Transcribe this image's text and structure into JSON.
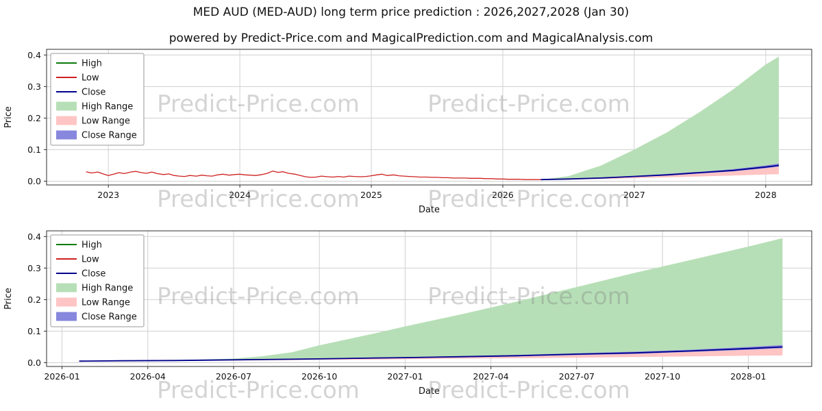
{
  "title": "MED AUD (MED-AUD) long term price prediction : 2026,2027,2028 (Jan 30)",
  "subtitle": "powered by Predict-Price.com and MagicalPrediction.com and MagicalAnalysis.com",
  "watermark": "Predict-Price.com",
  "colors": {
    "high_line": "#0a7a0a",
    "low_line": "#cf1f1f",
    "close_line": "#00008b",
    "high_range": "#b7dfb7",
    "low_range": "#ffc4c4",
    "close_range": "#8787dd",
    "grid": "#d0d0d0"
  },
  "chart_data": [
    {
      "type": "line",
      "title": "",
      "xlabel": "Date",
      "ylabel": "Price",
      "xlim": [
        2022.53,
        2028.35
      ],
      "ylim": [
        -0.012,
        0.418
      ],
      "grid": true,
      "legend_position": "upper-left",
      "yticks": [
        {
          "v": 0.0,
          "label": "0.0"
        },
        {
          "v": 0.1,
          "label": "0.1"
        },
        {
          "v": 0.2,
          "label": "0.2"
        },
        {
          "v": 0.3,
          "label": "0.3"
        },
        {
          "v": 0.4,
          "label": "0.4"
        }
      ],
      "xticks": [
        {
          "v": 2023,
          "label": "2023"
        },
        {
          "v": 2024,
          "label": "2024"
        },
        {
          "v": 2025,
          "label": "2025"
        },
        {
          "v": 2026,
          "label": "2026"
        },
        {
          "v": 2027,
          "label": "2027"
        },
        {
          "v": 2028,
          "label": "2028"
        }
      ],
      "legend": [
        {
          "label": "High",
          "type": "line",
          "color": "#0a7a0a"
        },
        {
          "label": "Low",
          "type": "line",
          "color": "#cf1f1f"
        },
        {
          "label": "Close",
          "type": "line",
          "color": "#00008b"
        },
        {
          "label": "High Range",
          "type": "patch",
          "color": "#b7dfb7"
        },
        {
          "label": "Low Range",
          "type": "patch",
          "color": "#ffc4c4"
        },
        {
          "label": "Close Range",
          "type": "patch",
          "color": "#8787dd"
        }
      ],
      "bands": [
        {
          "name": "High Range",
          "color": "#b7dfb7",
          "x": [
            2026.29,
            2026.5,
            2026.75,
            2027.0,
            2027.25,
            2027.5,
            2027.75,
            2028.0,
            2028.1
          ],
          "upper": [
            0.005,
            0.016,
            0.05,
            0.1,
            0.155,
            0.22,
            0.29,
            0.37,
            0.395
          ],
          "lower": [
            0.005,
            0.007,
            0.01,
            0.015,
            0.02,
            0.027,
            0.034,
            0.045,
            0.05
          ]
        },
        {
          "name": "Low Range",
          "color": "#ffc4c4",
          "x": [
            2026.29,
            2026.5,
            2026.75,
            2027.0,
            2027.25,
            2027.5,
            2027.75,
            2028.0,
            2028.1
          ],
          "upper": [
            0.004,
            0.006,
            0.009,
            0.013,
            0.018,
            0.024,
            0.031,
            0.041,
            0.046
          ],
          "lower": [
            0.004,
            0.005,
            0.007,
            0.009,
            0.012,
            0.015,
            0.018,
            0.021,
            0.022
          ]
        },
        {
          "name": "Close Range",
          "color": "#8787dd",
          "x": [
            2026.29,
            2026.5,
            2026.75,
            2027.0,
            2027.25,
            2027.5,
            2027.75,
            2028.0,
            2028.1
          ],
          "upper": [
            0.006,
            0.008,
            0.012,
            0.017,
            0.023,
            0.03,
            0.038,
            0.05,
            0.056
          ],
          "lower": [
            0.004,
            0.006,
            0.009,
            0.013,
            0.018,
            0.024,
            0.031,
            0.041,
            0.046
          ]
        }
      ],
      "series": [
        {
          "name": "Low",
          "color": "#cf1f1f",
          "width": 1.3,
          "x": [
            2022.83,
            2022.87,
            2022.92,
            2022.96,
            2023.0,
            2023.04,
            2023.08,
            2023.12,
            2023.17,
            2023.21,
            2023.25,
            2023.29,
            2023.33,
            2023.37,
            2023.42,
            2023.46,
            2023.5,
            2023.54,
            2023.58,
            2023.62,
            2023.67,
            2023.71,
            2023.75,
            2023.79,
            2023.83,
            2023.87,
            2023.92,
            2023.96,
            2024.0,
            2024.04,
            2024.08,
            2024.12,
            2024.17,
            2024.21,
            2024.25,
            2024.29,
            2024.33,
            2024.37,
            2024.42,
            2024.46,
            2024.5,
            2024.54,
            2024.58,
            2024.62,
            2024.67,
            2024.71,
            2024.75,
            2024.79,
            2024.83,
            2024.87,
            2024.92,
            2024.96,
            2025.0,
            2025.04,
            2025.08,
            2025.12,
            2025.17,
            2025.21,
            2025.25,
            2025.29,
            2025.33,
            2025.37,
            2025.42,
            2025.46,
            2025.5,
            2025.54,
            2025.58,
            2025.62,
            2025.67,
            2025.71,
            2025.75,
            2025.79,
            2025.83,
            2025.87,
            2025.92,
            2025.96,
            2026.0,
            2026.04,
            2026.08,
            2026.12,
            2026.17,
            2026.21,
            2026.25,
            2026.29
          ],
          "y": [
            0.03,
            0.026,
            0.029,
            0.023,
            0.018,
            0.022,
            0.027,
            0.024,
            0.029,
            0.031,
            0.027,
            0.025,
            0.029,
            0.024,
            0.021,
            0.023,
            0.018,
            0.016,
            0.015,
            0.018,
            0.016,
            0.019,
            0.017,
            0.016,
            0.02,
            0.022,
            0.019,
            0.021,
            0.022,
            0.02,
            0.019,
            0.018,
            0.021,
            0.025,
            0.032,
            0.028,
            0.03,
            0.025,
            0.022,
            0.018,
            0.014,
            0.012,
            0.013,
            0.016,
            0.014,
            0.013,
            0.015,
            0.013,
            0.016,
            0.015,
            0.014,
            0.015,
            0.017,
            0.02,
            0.022,
            0.018,
            0.02,
            0.017,
            0.016,
            0.015,
            0.014,
            0.013,
            0.013,
            0.012,
            0.012,
            0.011,
            0.011,
            0.01,
            0.01,
            0.01,
            0.009,
            0.009,
            0.009,
            0.008,
            0.008,
            0.007,
            0.007,
            0.006,
            0.006,
            0.006,
            0.005,
            0.005,
            0.005,
            0.005
          ]
        },
        {
          "name": "Close",
          "color": "#00008b",
          "width": 1.8,
          "x": [
            2026.29,
            2026.5,
            2026.75,
            2027.0,
            2027.25,
            2027.5,
            2027.75,
            2028.0,
            2028.1
          ],
          "y": [
            0.005,
            0.007,
            0.01,
            0.015,
            0.02,
            0.027,
            0.034,
            0.045,
            0.05
          ]
        }
      ]
    },
    {
      "type": "line",
      "title": "",
      "xlabel": "Date",
      "ylabel": "Price",
      "xlim": [
        2025.955,
        2028.185
      ],
      "ylim": [
        -0.012,
        0.418
      ],
      "grid": true,
      "legend_position": "upper-left",
      "yticks": [
        {
          "v": 0.0,
          "label": "0.0"
        },
        {
          "v": 0.1,
          "label": "0.1"
        },
        {
          "v": 0.2,
          "label": "0.2"
        },
        {
          "v": 0.3,
          "label": "0.3"
        },
        {
          "v": 0.4,
          "label": "0.4"
        }
      ],
      "xticks": [
        {
          "v": 2026.0,
          "label": "2026-01"
        },
        {
          "v": 2026.25,
          "label": "2026-04"
        },
        {
          "v": 2026.5,
          "label": "2026-07"
        },
        {
          "v": 2026.75,
          "label": "2026-10"
        },
        {
          "v": 2027.0,
          "label": "2027-01"
        },
        {
          "v": 2027.25,
          "label": "2027-04"
        },
        {
          "v": 2027.5,
          "label": "2027-07"
        },
        {
          "v": 2027.75,
          "label": "2027-10"
        },
        {
          "v": 2028.0,
          "label": "2028-01"
        }
      ],
      "legend": [
        {
          "label": "High",
          "type": "line",
          "color": "#0a7a0a"
        },
        {
          "label": "Low",
          "type": "line",
          "color": "#cf1f1f"
        },
        {
          "label": "Close",
          "type": "line",
          "color": "#00008b"
        },
        {
          "label": "High Range",
          "type": "patch",
          "color": "#b7dfb7"
        },
        {
          "label": "Low Range",
          "type": "patch",
          "color": "#ffc4c4"
        },
        {
          "label": "Close Range",
          "type": "patch",
          "color": "#8787dd"
        }
      ],
      "bands": [
        {
          "name": "High Range",
          "color": "#b7dfb7",
          "x": [
            2026.05,
            2026.17,
            2026.33,
            2026.5,
            2026.58,
            2026.67,
            2026.75,
            2026.92,
            2027.0,
            2027.17,
            2027.33,
            2027.5,
            2027.67,
            2027.83,
            2028.0,
            2028.1
          ],
          "upper": [
            0.005,
            0.006,
            0.008,
            0.013,
            0.02,
            0.033,
            0.055,
            0.095,
            0.115,
            0.155,
            0.195,
            0.24,
            0.285,
            0.325,
            0.368,
            0.395
          ],
          "lower": [
            0.005,
            0.006,
            0.007,
            0.009,
            0.01,
            0.011,
            0.012,
            0.015,
            0.016,
            0.019,
            0.022,
            0.027,
            0.031,
            0.037,
            0.045,
            0.05
          ]
        },
        {
          "name": "Low Range",
          "color": "#ffc4c4",
          "x": [
            2026.05,
            2026.17,
            2026.33,
            2026.5,
            2026.58,
            2026.67,
            2026.75,
            2026.92,
            2027.0,
            2027.17,
            2027.33,
            2027.5,
            2027.67,
            2027.83,
            2028.0,
            2028.1
          ],
          "upper": [
            0.0045,
            0.0055,
            0.0064,
            0.008,
            0.009,
            0.01,
            0.011,
            0.0135,
            0.0145,
            0.017,
            0.02,
            0.024,
            0.028,
            0.034,
            0.041,
            0.046
          ],
          "lower": [
            0.005,
            0.0055,
            0.006,
            0.007,
            0.0075,
            0.008,
            0.009,
            0.01,
            0.011,
            0.013,
            0.014,
            0.016,
            0.018,
            0.02,
            0.022,
            0.023
          ]
        },
        {
          "name": "Close Range",
          "color": "#8787dd",
          "x": [
            2026.05,
            2026.17,
            2026.33,
            2026.5,
            2026.58,
            2026.67,
            2026.75,
            2026.92,
            2027.0,
            2027.17,
            2027.33,
            2027.5,
            2027.67,
            2027.83,
            2028.0,
            2028.1
          ],
          "upper": [
            0.0056,
            0.0067,
            0.0078,
            0.01,
            0.011,
            0.012,
            0.0135,
            0.017,
            0.018,
            0.021,
            0.025,
            0.03,
            0.035,
            0.041,
            0.05,
            0.056
          ],
          "lower": [
            0.0045,
            0.0055,
            0.0064,
            0.008,
            0.009,
            0.01,
            0.011,
            0.0135,
            0.0145,
            0.017,
            0.02,
            0.024,
            0.028,
            0.034,
            0.041,
            0.046
          ]
        }
      ],
      "series": [
        {
          "name": "Close",
          "color": "#00008b",
          "width": 1.8,
          "x": [
            2026.05,
            2026.17,
            2026.33,
            2026.5,
            2026.58,
            2026.67,
            2026.75,
            2026.92,
            2027.0,
            2027.17,
            2027.33,
            2027.5,
            2027.67,
            2027.83,
            2028.0,
            2028.1
          ],
          "y": [
            0.005,
            0.006,
            0.007,
            0.009,
            0.01,
            0.011,
            0.012,
            0.015,
            0.016,
            0.019,
            0.022,
            0.027,
            0.031,
            0.037,
            0.045,
            0.05
          ]
        }
      ]
    }
  ]
}
